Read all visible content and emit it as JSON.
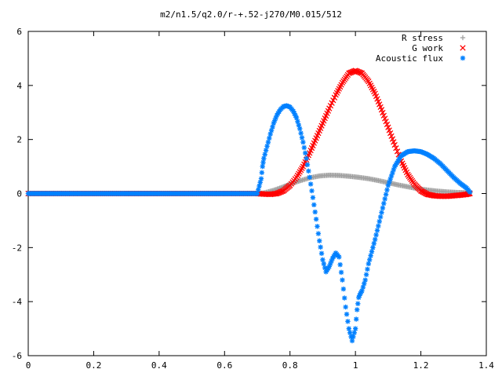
{
  "chart_data": {
    "type": "scatter",
    "title": "m2/n1.5/q2.0/r-+.52-j270/M0.015/512",
    "xlabel": "",
    "ylabel": "",
    "xlim": [
      0,
      1.4
    ],
    "ylim": [
      -6,
      6
    ],
    "xticks": [
      "0",
      "0.2",
      "0.4",
      "0.6",
      "0.8",
      "1",
      "1.2",
      "1.4"
    ],
    "yticks": [
      "-6",
      "-4",
      "-2",
      "0",
      "2",
      "4",
      "6"
    ],
    "grid": false,
    "legend_position": "top-right",
    "series": [
      {
        "name": "R stress",
        "marker": "plus",
        "color": "#a0a0a0",
        "x": [
          0.0,
          0.1,
          0.2,
          0.3,
          0.4,
          0.5,
          0.6,
          0.7,
          0.72,
          0.75,
          0.78,
          0.8,
          0.83,
          0.86,
          0.89,
          0.92,
          0.95,
          0.98,
          1.01,
          1.04,
          1.07,
          1.1,
          1.13,
          1.16,
          1.19,
          1.22,
          1.25,
          1.28,
          1.31,
          1.34,
          1.35
        ],
        "y": [
          0,
          0,
          0,
          0,
          0,
          0,
          0,
          0,
          0.02,
          0.12,
          0.25,
          0.35,
          0.47,
          0.58,
          0.65,
          0.68,
          0.67,
          0.64,
          0.6,
          0.55,
          0.48,
          0.4,
          0.32,
          0.25,
          0.18,
          0.13,
          0.09,
          0.06,
          0.04,
          0.03,
          0.03
        ]
      },
      {
        "name": "G work",
        "marker": "cross",
        "color": "#ff0000",
        "x": [
          0.0,
          0.1,
          0.2,
          0.3,
          0.4,
          0.5,
          0.6,
          0.7,
          0.72,
          0.74,
          0.76,
          0.78,
          0.8,
          0.82,
          0.84,
          0.86,
          0.88,
          0.9,
          0.92,
          0.94,
          0.96,
          0.98,
          1.0,
          1.02,
          1.04,
          1.06,
          1.08,
          1.1,
          1.12,
          1.14,
          1.16,
          1.18,
          1.2,
          1.22,
          1.24,
          1.26,
          1.28,
          1.3,
          1.32,
          1.34,
          1.35
        ],
        "y": [
          0,
          0,
          0,
          0,
          0,
          0,
          0,
          0,
          -0.02,
          -0.03,
          0.0,
          0.1,
          0.3,
          0.6,
          1.0,
          1.5,
          2.05,
          2.6,
          3.15,
          3.65,
          4.1,
          4.45,
          4.55,
          4.45,
          4.15,
          3.7,
          3.1,
          2.45,
          1.8,
          1.2,
          0.7,
          0.35,
          0.1,
          -0.03,
          -0.08,
          -0.1,
          -0.1,
          -0.08,
          -0.06,
          -0.03,
          0.0
        ]
      },
      {
        "name": "Acoustic flux",
        "marker": "star",
        "color": "#0080ff",
        "x": [
          0.0,
          0.1,
          0.2,
          0.3,
          0.4,
          0.5,
          0.6,
          0.7,
          0.712,
          0.716,
          0.72,
          0.73,
          0.74,
          0.75,
          0.76,
          0.77,
          0.78,
          0.79,
          0.8,
          0.81,
          0.82,
          0.83,
          0.84,
          0.85,
          0.86,
          0.87,
          0.88,
          0.89,
          0.9,
          0.91,
          0.92,
          0.93,
          0.94,
          0.95,
          0.96,
          0.97,
          0.98,
          0.99,
          1.0,
          1.005,
          1.01,
          1.015,
          1.02,
          1.03,
          1.04,
          1.06,
          1.08,
          1.1,
          1.12,
          1.14,
          1.16,
          1.18,
          1.2,
          1.22,
          1.24,
          1.26,
          1.28,
          1.3,
          1.32,
          1.34,
          1.35
        ],
        "y": [
          0,
          0,
          0,
          0,
          0,
          0,
          0,
          0,
          0.55,
          1.0,
          1.3,
          1.75,
          2.2,
          2.6,
          2.9,
          3.1,
          3.22,
          3.25,
          3.2,
          3.05,
          2.8,
          2.4,
          1.9,
          1.3,
          0.6,
          -0.15,
          -0.95,
          -1.75,
          -2.45,
          -2.9,
          -2.7,
          -2.4,
          -2.2,
          -2.35,
          -3.2,
          -4.2,
          -5.0,
          -5.45,
          -5.0,
          -4.3,
          -3.85,
          -3.7,
          -3.6,
          -3.2,
          -2.6,
          -1.7,
          -0.7,
          0.3,
          1.0,
          1.4,
          1.55,
          1.58,
          1.55,
          1.45,
          1.3,
          1.1,
          0.85,
          0.6,
          0.38,
          0.2,
          0.05
        ]
      }
    ]
  }
}
